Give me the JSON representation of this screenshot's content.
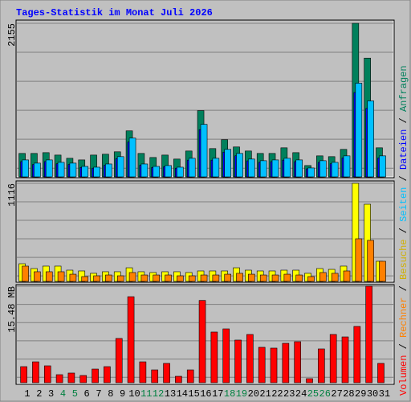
{
  "chart_data": [
    {
      "type": "bar",
      "title": "Tages-Statistik im Monat Juli 2026",
      "ylim": [
        0,
        2155
      ],
      "yticks": [
        2155
      ],
      "series": [
        {
          "name": "Anfragen",
          "color": "#00805c",
          "values": [
            329,
            329,
            340,
            306,
            261,
            238,
            306,
            318,
            352,
            646,
            329,
            272,
            306,
            250,
            363,
            930,
            397,
            522,
            420,
            363,
            329,
            329,
            408,
            340,
            159,
            295,
            284,
            386,
            2155,
            1667,
            408
          ]
        },
        {
          "name": "Dateien",
          "color": "#0000ff",
          "values": [
            215,
            174,
            215,
            184,
            174,
            132,
            122,
            163,
            256,
            490,
            163,
            132,
            143,
            122,
            235,
            663,
            235,
            347,
            296,
            225,
            204,
            214,
            235,
            214,
            113,
            204,
            184,
            266,
            1184,
            960,
            266
          ]
        },
        {
          "name": "Seiten",
          "color": "#00c0ff",
          "values": [
            238,
            193,
            238,
            204,
            193,
            147,
            136,
            181,
            284,
            544,
            181,
            147,
            159,
            136,
            261,
            737,
            261,
            386,
            329,
            250,
            227,
            238,
            261,
            238,
            125,
            227,
            204,
            295,
            1315,
            1066,
            295
          ]
        }
      ]
    },
    {
      "type": "bar",
      "ylim": [
        0,
        1116
      ],
      "yticks": [
        1116
      ],
      "series": [
        {
          "name": "Besuche",
          "color": "#ffff00",
          "label_color": "#d0b000",
          "values": [
            201,
            146,
            174,
            174,
            128,
            119,
            92,
            110,
            110,
            155,
            110,
            101,
            110,
            110,
            101,
            119,
            119,
            119,
            155,
            128,
            119,
            119,
            128,
            128,
            92,
            146,
            137,
            174,
            1116,
            878,
            229
          ]
        },
        {
          "name": "Rechner",
          "color": "#ff8000",
          "values": [
            174,
            110,
            110,
            110,
            82,
            55,
            64,
            73,
            64,
            101,
            73,
            73,
            73,
            64,
            64,
            73,
            73,
            82,
            92,
            82,
            73,
            73,
            82,
            73,
            55,
            101,
            92,
            119,
            485,
            467,
            229
          ]
        }
      ]
    },
    {
      "type": "bar",
      "ylim": [
        0,
        15.48
      ],
      "yticks": [
        {
          "value": 15.48,
          "label": "15.48 MB"
        }
      ],
      "categories": [
        "1",
        "2",
        "3",
        "4",
        "5",
        "6",
        "7",
        "8",
        "9",
        "10",
        "11",
        "12",
        "13",
        "14",
        "15",
        "16",
        "17",
        "18",
        "19",
        "20",
        "21",
        "22",
        "23",
        "24",
        "25",
        "26",
        "27",
        "28",
        "29",
        "30",
        "31"
      ],
      "category_label_colors": [
        "#000000",
        "#000000",
        "#000000",
        "#008040",
        "#008040",
        "#000000",
        "#000000",
        "#000000",
        "#000000",
        "#000000",
        "#008040",
        "#008040",
        "#000000",
        "#000000",
        "#000000",
        "#000000",
        "#000000",
        "#008040",
        "#008040",
        "#000000",
        "#000000",
        "#000000",
        "#000000",
        "#000000",
        "#008040",
        "#008040",
        "#000000",
        "#000000",
        "#000000",
        "#000000",
        "#000000"
      ],
      "series": [
        {
          "name": "Volumen",
          "color": "#ff0000",
          "values": [
            2.58,
            3.35,
            2.71,
            1.29,
            1.55,
            1.16,
            2.19,
            2.58,
            7.1,
            13.8,
            3.35,
            2.06,
            3.1,
            1.03,
            2.06,
            13.2,
            8.13,
            8.64,
            6.84,
            7.74,
            5.68,
            5.55,
            6.32,
            6.58,
            0.65,
            5.42,
            7.74,
            7.35,
            9.03,
            15.48,
            3.1
          ]
        }
      ]
    }
  ]
}
